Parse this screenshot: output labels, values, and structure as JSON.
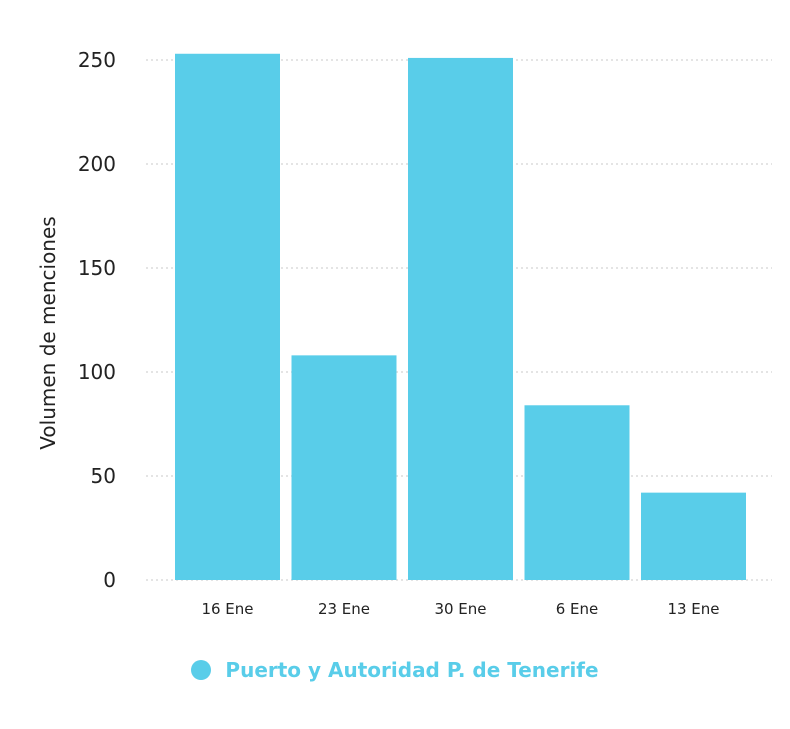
{
  "chart_data": {
    "type": "bar",
    "categories": [
      "16 Ene",
      "23 Ene",
      "30 Ene",
      "6 Ene",
      "13 Ene"
    ],
    "series": [
      {
        "name": "Puerto y Autoridad P. de Tenerife",
        "values": [
          253,
          108,
          251,
          84,
          42
        ]
      }
    ],
    "title": "",
    "xlabel": "",
    "ylabel": "Volumen de menciones",
    "ylim": [
      0,
      250
    ],
    "yticks": [
      "0",
      "50",
      "100",
      "150",
      "200",
      "250"
    ],
    "grid": true,
    "legend_position": "bottom"
  },
  "colors": {
    "bar": "#59cde9",
    "legend_text": "#59cde9",
    "grid": "#c8c8c8",
    "text": "#222222"
  }
}
